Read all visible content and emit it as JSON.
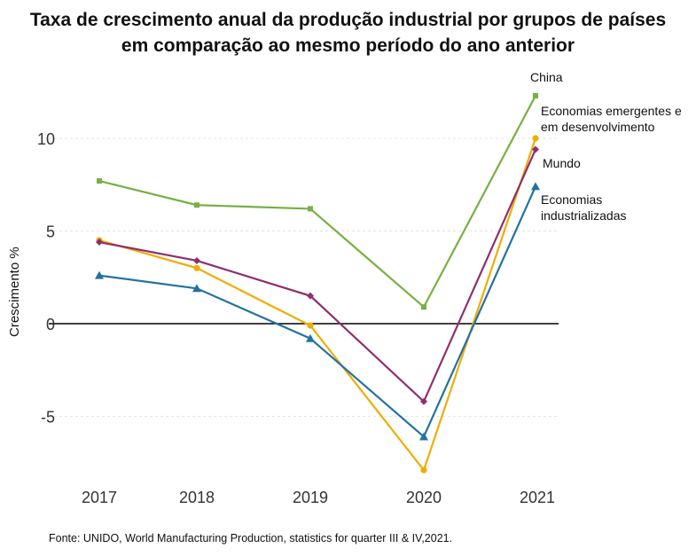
{
  "chart_data": {
    "type": "line",
    "title_line1": "Taxa de crescimento anual da produção industrial por grupos de países",
    "title_line2": "em comparação ao mesmo período do ano anterior",
    "xlabel": "",
    "ylabel": "Crescimento %",
    "x": [
      "2017",
      "2018",
      "2019",
      "2020",
      "2021"
    ],
    "ylim": [
      -8.5,
      12.5
    ],
    "yticks": [
      -5,
      0,
      5,
      10
    ],
    "ytick_labels": [
      "-5",
      "0",
      "5",
      "10"
    ],
    "grid": true,
    "series": [
      {
        "name": "China",
        "color": "#77b043",
        "marker": "square",
        "values": [
          7.7,
          6.4,
          6.2,
          0.9,
          12.3
        ],
        "label_lines": [
          "China"
        ]
      },
      {
        "name": "Economias emergentes e em desenvolvimento",
        "color": "#f0ad00",
        "marker": "circle",
        "values": [
          4.5,
          3.0,
          -0.1,
          -7.9,
          10.0
        ],
        "label_lines": [
          "Economias emergentes e",
          "em desenvolvimento"
        ]
      },
      {
        "name": "Mundo",
        "color": "#8e2f6e",
        "marker": "diamond",
        "values": [
          4.4,
          3.4,
          1.5,
          -4.2,
          9.4
        ],
        "label_lines": [
          "Mundo"
        ]
      },
      {
        "name": "Economias industrializadas",
        "color": "#2471a3",
        "marker": "triangle",
        "values": [
          2.6,
          1.9,
          -0.8,
          -6.1,
          7.4
        ],
        "label_lines": [
          "Economias",
          "industrializadas"
        ]
      }
    ],
    "source": "Fonte: UNIDO, World Manufacturing Production, statistics for quarter III & IV,2021."
  }
}
